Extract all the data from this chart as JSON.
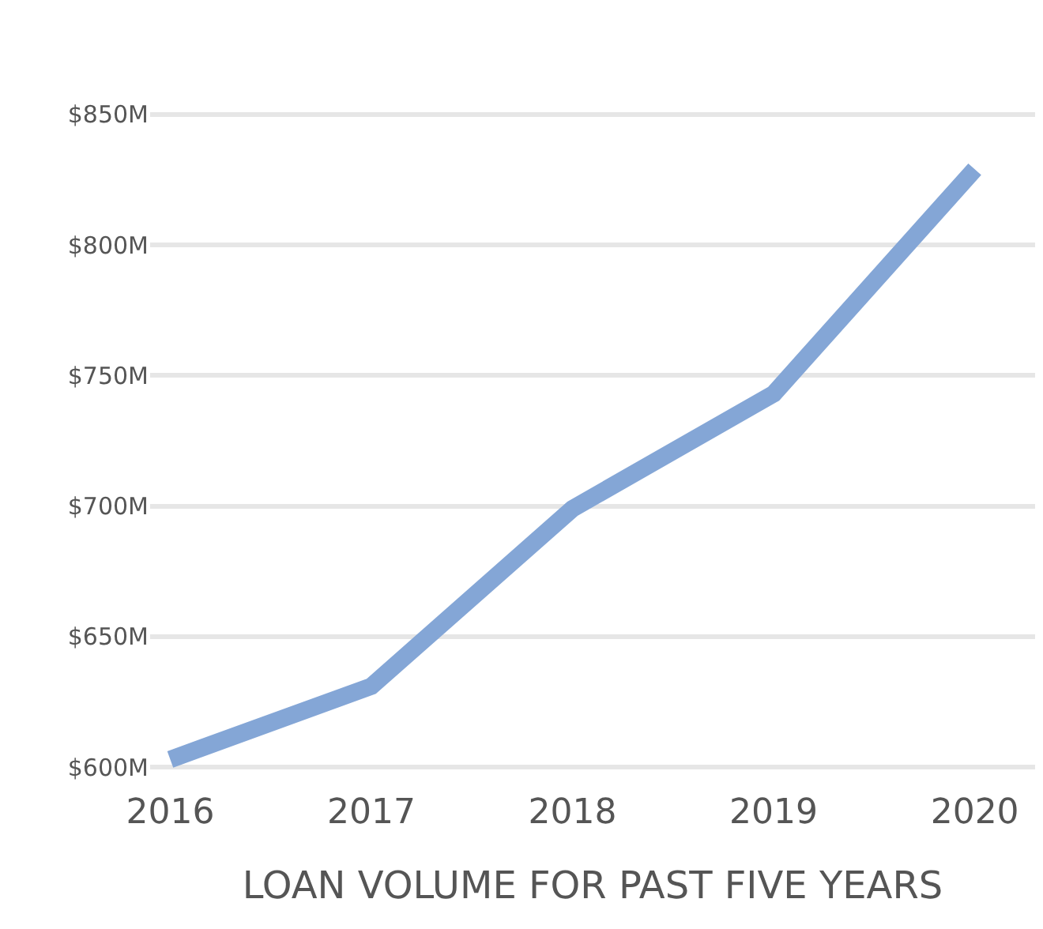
{
  "chart_data": {
    "type": "line",
    "xlabel": "LOAN VOLUME FOR PAST FIVE YEARS",
    "categories": [
      "2016",
      "2017",
      "2018",
      "2019",
      "2020"
    ],
    "series": [
      {
        "color": "#84a6d6",
        "values": [
          603,
          631,
          699,
          743,
          829
        ]
      }
    ],
    "ylim": [
      600,
      850
    ],
    "yticks": [
      {
        "value": 600,
        "label": "$600M"
      },
      {
        "value": 650,
        "label": "$650M"
      },
      {
        "value": 700,
        "label": "$700M"
      },
      {
        "value": 750,
        "label": "$750M"
      },
      {
        "value": 800,
        "label": "$800M"
      },
      {
        "value": 850,
        "label": "$850M"
      }
    ],
    "grid": "y",
    "marker": "none",
    "line_style": "solid"
  }
}
